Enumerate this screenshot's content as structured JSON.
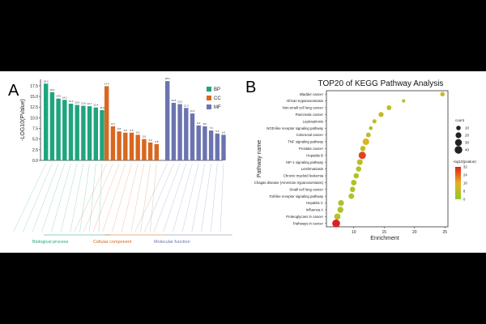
{
  "panel_labels": [
    "A",
    "B"
  ],
  "colors": {
    "background": "#000000",
    "figure": "#ffffff",
    "bp": "#1fa57d",
    "cc": "#d8671f",
    "mf": "#6b74b0",
    "gradient_high": "#e02020",
    "gradient_mid": "#e6b020",
    "gradient_low": "#8ccd2c"
  },
  "chart_data": [
    {
      "type": "bar",
      "title": "",
      "ylabel": "-LOG10(PValue)",
      "xlabel": "",
      "ylim": [
        0,
        17.5
      ],
      "yticks": [
        "0.0",
        "2.5",
        "5.0",
        "7.5",
        "10.0",
        "12.5",
        "15.0",
        "17.5"
      ],
      "legend": [
        "BP",
        "CC",
        "MF"
      ],
      "group_labels": [
        "Biological process",
        "Cellular component",
        "Molecular function"
      ],
      "series": [
        {
          "name": "BP",
          "values": [
            18.0,
            16.0,
            14.5,
            14.2,
            13.3,
            13.0,
            12.8,
            12.7,
            12.4,
            11.8
          ]
        },
        {
          "name": "CC",
          "values": [
            17.4,
            8.0,
            6.8,
            6.5,
            6.5,
            6.0,
            5.0,
            4.2,
            3.8
          ]
        },
        {
          "name": "MF",
          "values": [
            18.6,
            13.5,
            13.2,
            12.3,
            11.0,
            8.2,
            8.0,
            7.0,
            6.3,
            6.0
          ]
        }
      ]
    },
    {
      "type": "scatter",
      "title": "TOP20 of KEGG Pathway Analysis",
      "xlabel": "Enrichment",
      "ylabel": "Pathway name",
      "xlim": [
        5.5,
        25.5
      ],
      "xticks": [
        10,
        15,
        20,
        25
      ],
      "size_legend": {
        "title": "count",
        "labels": [
          "10",
          "20",
          "30",
          "40"
        ]
      },
      "color_legend": {
        "title": "-log10(pvalue)",
        "labels": [
          "0",
          "8",
          "16",
          "24",
          "32"
        ]
      },
      "points": [
        {
          "pathway": "Bladder cancer",
          "enrichment": 24.6,
          "count": 10,
          "logp": 12
        },
        {
          "pathway": "African trypanosomiasis",
          "enrichment": 18.2,
          "count": 4,
          "logp": 6
        },
        {
          "pathway": "Non-small cell lung cancer",
          "enrichment": 15.8,
          "count": 12,
          "logp": 9
        },
        {
          "pathway": "Pancreatic cancer",
          "enrichment": 14.5,
          "count": 14,
          "logp": 10
        },
        {
          "pathway": "Leptospirosis",
          "enrichment": 13.4,
          "count": 8,
          "logp": 7
        },
        {
          "pathway": "NOD-like receptor signaling pathway",
          "enrichment": 12.8,
          "count": 6,
          "logp": 6
        },
        {
          "pathway": "Colorectal cancer",
          "enrichment": 12.4,
          "count": 12,
          "logp": 8
        },
        {
          "pathway": "TNF signaling pathway",
          "enrichment": 12.0,
          "count": 28,
          "logp": 14
        },
        {
          "pathway": "Prostate cancer",
          "enrichment": 11.5,
          "count": 16,
          "logp": 8
        },
        {
          "pathway": "Hepatitis B",
          "enrichment": 11.4,
          "count": 36,
          "logp": 28
        },
        {
          "pathway": "HIF-1 signaling pathway",
          "enrichment": 11.0,
          "count": 20,
          "logp": 8
        },
        {
          "pathway": "Leishmaniasis",
          "enrichment": 10.8,
          "count": 16,
          "logp": 6
        },
        {
          "pathway": "Chronic myeloid leukemia",
          "enrichment": 10.4,
          "count": 16,
          "logp": 7
        },
        {
          "pathway": "Chagas disease (American trypanosomiasis)",
          "enrichment": 10.0,
          "count": 18,
          "logp": 7
        },
        {
          "pathway": "Small cell lung cancer",
          "enrichment": 9.8,
          "count": 16,
          "logp": 6
        },
        {
          "pathway": "Toll-like receptor signaling pathway",
          "enrichment": 9.6,
          "count": 18,
          "logp": 7
        },
        {
          "pathway": "Hepatitis C",
          "enrichment": 7.9,
          "count": 20,
          "logp": 6
        },
        {
          "pathway": "Influenza A",
          "enrichment": 7.8,
          "count": 22,
          "logp": 6
        },
        {
          "pathway": "Proteoglycans in cancer",
          "enrichment": 7.3,
          "count": 24,
          "logp": 7
        },
        {
          "pathway": "Pathways in cancer",
          "enrichment": 7.1,
          "count": 42,
          "logp": 32
        }
      ]
    }
  ]
}
